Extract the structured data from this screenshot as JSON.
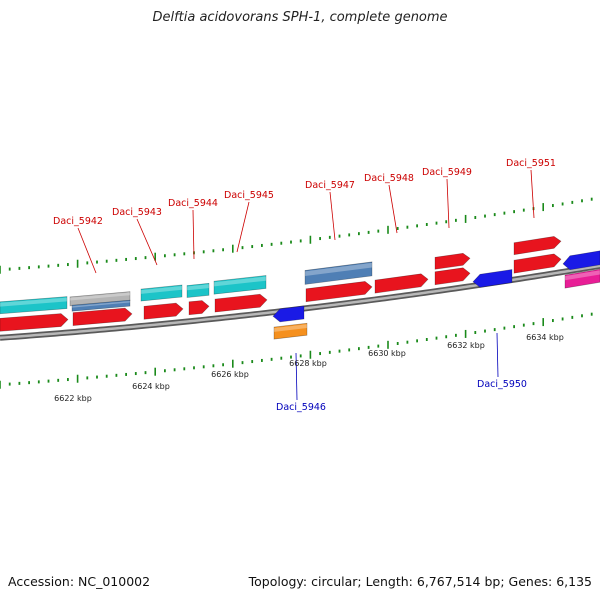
{
  "title": "Delftia acidovorans SPH-1, complete genome",
  "footer": {
    "accession": "Accession: NC_010002",
    "summary": "Topology: circular; Length: 6,767,514 bp; Genes: 6,135"
  },
  "scale_labels": [
    "6622 kbp",
    "6624 kbp",
    "6626 kbp",
    "6628 kbp",
    "6630 kbp",
    "6632 kbp",
    "6634 kbp"
  ],
  "gene_labels": {
    "forward": [
      "Daci_5942",
      "Daci_5943",
      "Daci_5944",
      "Daci_5945",
      "Daci_5947",
      "Daci_5948",
      "Daci_5949",
      "Daci_5951"
    ],
    "reverse": [
      "Daci_5946",
      "Daci_5950"
    ]
  },
  "colors": {
    "forward_label": "#cc0000",
    "reverse_label": "#0000bb",
    "cds": "#e8141e",
    "cyan": "#1cc4c8",
    "steelblue": "#4f7fb5",
    "gray": "#b4b4b4",
    "blue": "#1a1ae6",
    "orange": "#f5901e",
    "magenta": "#e81e96",
    "tick": "#1a8a1a",
    "backbone": "#8a8a8a"
  }
}
